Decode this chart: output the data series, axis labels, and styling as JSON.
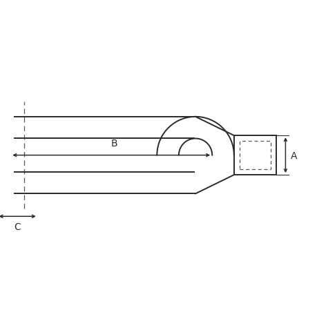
{
  "bg_color": "#ffffff",
  "line_color": "#2a2a2a",
  "dash_color": "#555555",
  "fig_width": 4.6,
  "fig_height": 4.6,
  "dpi": 100,
  "label_A": "A",
  "label_B": "B",
  "label_C": "C",
  "lw": 1.4,
  "lw_dash": 0.9,
  "lw_dim": 1.1,
  "arrow_scale": 7
}
